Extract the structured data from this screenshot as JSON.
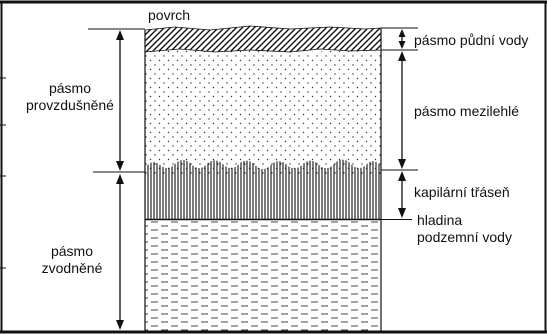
{
  "labels": {
    "surface": "povrch",
    "soil_water_zone": "pásmo půdní vody",
    "intermediate_zone": "pásmo mezilehlé",
    "capillary_fringe": "kapilární třáseň",
    "groundwater_level_1": "hladina",
    "groundwater_level_2": "podzemní vody",
    "aeration_zone_1": "pásmo",
    "aeration_zone_2": "provzdušněné",
    "saturated_zone_1": "pásmo",
    "saturated_zone_2": "zvodněné"
  },
  "colors": {
    "ink": "#111111",
    "background": "#ffffff"
  }
}
